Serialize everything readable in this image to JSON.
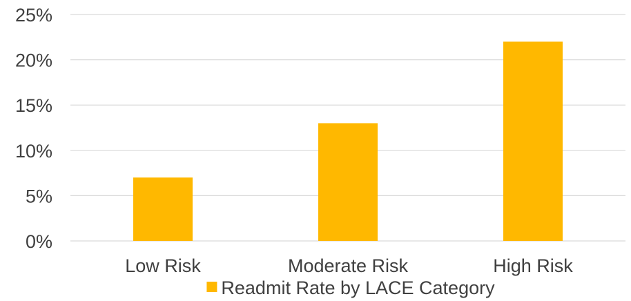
{
  "chart_data": {
    "type": "bar",
    "categories": [
      "Low Risk",
      "Moderate Risk",
      "High Risk"
    ],
    "series": [
      {
        "name": "Readmit Rate by LACE Category",
        "values": [
          0.07,
          0.13,
          0.22
        ],
        "color": "#FFB800"
      }
    ],
    "ylim": [
      0,
      0.25
    ],
    "yticks": [
      0,
      0.05,
      0.1,
      0.15,
      0.2,
      0.25
    ],
    "ytick_labels": [
      "0%",
      "5%",
      "10%",
      "15%",
      "20%",
      "25%"
    ],
    "grid": true,
    "legend_position": "bottom",
    "gridline_color": "#D9D9D9",
    "text_color": "#404040"
  }
}
